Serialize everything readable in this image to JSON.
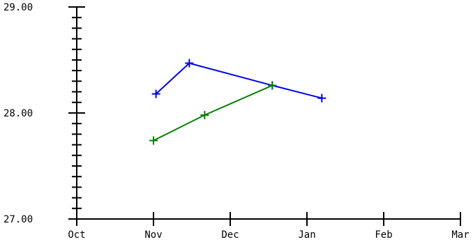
{
  "chart_data": {
    "type": "line",
    "title": "",
    "xlabel": "",
    "ylabel": "",
    "x_tick_labels": [
      "Oct",
      "Nov",
      "Dec",
      "Jan",
      "Feb",
      "Mar"
    ],
    "y_tick_labels": [
      "27.00",
      "28.00",
      "29.00"
    ],
    "ylim": [
      27.0,
      29.0
    ],
    "y_minor_step": 0.1,
    "grid": false,
    "series": [
      {
        "color": "#0000ee",
        "marker": "plus",
        "points": [
          {
            "x": "Nov 2",
            "y": 28.18
          },
          {
            "x": "Nov 15",
            "y": 28.47
          },
          {
            "x": "Dec 18",
            "y": 28.26
          },
          {
            "x": "Jan 7",
            "y": 28.14
          }
        ]
      },
      {
        "color": "#008000",
        "marker": "plus",
        "points": [
          {
            "x": "Nov 1",
            "y": 27.74
          },
          {
            "x": "Nov 21",
            "y": 27.98
          },
          {
            "x": "Dec 18",
            "y": 28.26
          }
        ]
      }
    ]
  }
}
